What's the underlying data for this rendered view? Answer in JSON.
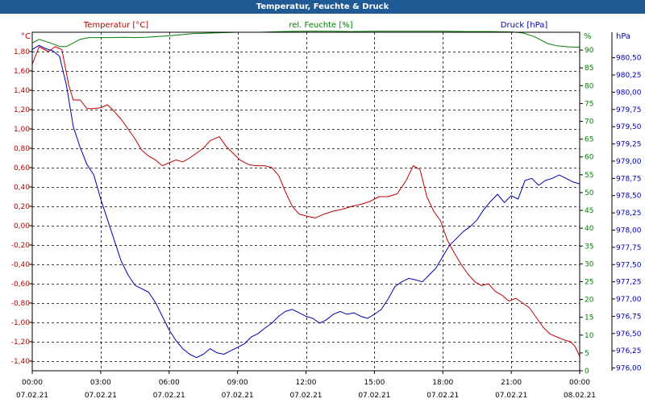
{
  "window": {
    "title": "Temperatur, Feuchte & Druck"
  },
  "chart_data": {
    "type": "line",
    "title": "Temperatur, Feuchte & Druck",
    "grid": true,
    "colors": {
      "temperature": "#c00000",
      "humidity": "#008000",
      "pressure": "#0000b0",
      "grid": "#000000",
      "title_bar": "#1f5a94"
    },
    "x_ticks": [
      {
        "time": "00:00",
        "date": "07.02.21",
        "hours": 0
      },
      {
        "time": "03:00",
        "date": "07.02.21",
        "hours": 3
      },
      {
        "time": "06:00",
        "date": "07.02.21",
        "hours": 6
      },
      {
        "time": "09:00",
        "date": "07.02.21",
        "hours": 9
      },
      {
        "time": "12:00",
        "date": "07.02.21",
        "hours": 12
      },
      {
        "time": "15:00",
        "date": "07.02.21",
        "hours": 15
      },
      {
        "time": "18:00",
        "date": "07.02.21",
        "hours": 18
      },
      {
        "time": "21:00",
        "date": "07.02.21",
        "hours": 21
      },
      {
        "time": "00:00",
        "date": "08.02.21",
        "hours": 24
      }
    ],
    "xlim": [
      0,
      24
    ],
    "axes": {
      "temperature": {
        "label": "Temperatur [°C]",
        "unit": "°C",
        "ylim": [
          -1.5,
          2.0
        ],
        "ticks": [
          "1,80",
          "1,60",
          "1,40",
          "1,20",
          "1,00",
          "0,80",
          "0,60",
          "0,40",
          "0,20",
          "0,00",
          "-0,20",
          "-0,40",
          "-0,60",
          "-0,80",
          "-1,00",
          "-1,20",
          "-1,40"
        ],
        "tick_values": [
          1.8,
          1.6,
          1.4,
          1.2,
          1.0,
          0.8,
          0.6,
          0.4,
          0.2,
          0.0,
          -0.2,
          -0.4,
          -0.6,
          -0.8,
          -1.0,
          -1.2,
          -1.4
        ]
      },
      "humidity": {
        "label": "rel. Feuchte [%]",
        "unit": "%",
        "ylim": [
          0,
          95
        ],
        "ticks": [
          "90",
          "85",
          "80",
          "75",
          "70",
          "65",
          "60",
          "55",
          "50",
          "45",
          "40",
          "35",
          "30",
          "25",
          "20",
          "15",
          "10",
          "5",
          "0"
        ],
        "tick_values": [
          90,
          85,
          80,
          75,
          70,
          65,
          60,
          55,
          50,
          45,
          40,
          35,
          30,
          25,
          20,
          15,
          10,
          5,
          0
        ]
      },
      "pressure": {
        "label": "Druck [hPa]",
        "unit": "hPa",
        "ylim": [
          975.96,
          980.87
        ],
        "ticks": [
          "980,50",
          "980,25",
          "980,00",
          "979,75",
          "979,50",
          "979,25",
          "979,00",
          "978,75",
          "978,50",
          "978,25",
          "978,00",
          "977,75",
          "977,50",
          "977,25",
          "977,00",
          "976,75",
          "976,50",
          "976,25",
          "976,00"
        ],
        "tick_values": [
          980.5,
          980.25,
          980.0,
          979.75,
          979.5,
          979.25,
          979.0,
          978.75,
          978.5,
          978.25,
          978.0,
          977.75,
          977.5,
          977.25,
          977.0,
          976.75,
          976.5,
          976.25,
          976.0
        ]
      }
    },
    "series": [
      {
        "name": "Temperatur [°C]",
        "axis": "temperature",
        "points": [
          [
            0.0,
            1.67
          ],
          [
            0.3,
            1.85
          ],
          [
            0.7,
            1.8
          ],
          [
            1.0,
            1.85
          ],
          [
            1.3,
            1.82
          ],
          [
            1.6,
            1.45
          ],
          [
            1.8,
            1.3
          ],
          [
            2.1,
            1.3
          ],
          [
            2.4,
            1.21
          ],
          [
            2.7,
            1.21
          ],
          [
            3.0,
            1.22
          ],
          [
            3.3,
            1.25
          ],
          [
            3.6,
            1.18
          ],
          [
            3.9,
            1.1
          ],
          [
            4.2,
            1.0
          ],
          [
            4.5,
            0.9
          ],
          [
            4.8,
            0.78
          ],
          [
            5.1,
            0.72
          ],
          [
            5.4,
            0.68
          ],
          [
            5.7,
            0.62
          ],
          [
            6.0,
            0.65
          ],
          [
            6.3,
            0.68
          ],
          [
            6.6,
            0.66
          ],
          [
            6.9,
            0.7
          ],
          [
            7.2,
            0.75
          ],
          [
            7.5,
            0.8
          ],
          [
            7.8,
            0.88
          ],
          [
            8.2,
            0.92
          ],
          [
            8.5,
            0.82
          ],
          [
            8.8,
            0.75
          ],
          [
            9.1,
            0.68
          ],
          [
            9.5,
            0.63
          ],
          [
            9.8,
            0.62
          ],
          [
            10.2,
            0.62
          ],
          [
            10.5,
            0.6
          ],
          [
            10.8,
            0.52
          ],
          [
            11.1,
            0.35
          ],
          [
            11.4,
            0.2
          ],
          [
            11.7,
            0.12
          ],
          [
            12.0,
            0.1
          ],
          [
            12.4,
            0.08
          ],
          [
            12.8,
            0.12
          ],
          [
            13.2,
            0.15
          ],
          [
            13.6,
            0.17
          ],
          [
            14.0,
            0.2
          ],
          [
            14.4,
            0.22
          ],
          [
            14.8,
            0.25
          ],
          [
            15.2,
            0.3
          ],
          [
            15.6,
            0.3
          ],
          [
            16.0,
            0.33
          ],
          [
            16.4,
            0.47
          ],
          [
            16.7,
            0.62
          ],
          [
            17.0,
            0.58
          ],
          [
            17.3,
            0.3
          ],
          [
            17.6,
            0.15
          ],
          [
            17.9,
            0.05
          ],
          [
            18.2,
            -0.15
          ],
          [
            18.5,
            -0.28
          ],
          [
            18.8,
            -0.4
          ],
          [
            19.1,
            -0.5
          ],
          [
            19.4,
            -0.58
          ],
          [
            19.7,
            -0.62
          ],
          [
            20.0,
            -0.6
          ],
          [
            20.3,
            -0.68
          ],
          [
            20.6,
            -0.72
          ],
          [
            20.9,
            -0.78
          ],
          [
            21.2,
            -0.75
          ],
          [
            21.5,
            -0.8
          ],
          [
            21.8,
            -0.85
          ],
          [
            22.1,
            -0.95
          ],
          [
            22.4,
            -1.05
          ],
          [
            22.7,
            -1.12
          ],
          [
            23.0,
            -1.15
          ],
          [
            23.3,
            -1.18
          ],
          [
            23.6,
            -1.2
          ],
          [
            23.8,
            -1.25
          ],
          [
            24.0,
            -1.35
          ]
        ]
      },
      {
        "name": "rel. Feuchte [%]",
        "axis": "humidity",
        "points": [
          [
            0.0,
            92
          ],
          [
            0.3,
            93
          ],
          [
            0.8,
            92
          ],
          [
            1.2,
            91
          ],
          [
            1.5,
            91
          ],
          [
            1.8,
            92
          ],
          [
            2.1,
            93
          ],
          [
            2.5,
            93.5
          ],
          [
            3.0,
            93.5
          ],
          [
            3.5,
            93.5
          ],
          [
            4.0,
            93.6
          ],
          [
            4.5,
            93.5
          ],
          [
            5.0,
            93.6
          ],
          [
            5.5,
            93.8
          ],
          [
            6.0,
            94.0
          ],
          [
            6.5,
            94.3
          ],
          [
            7.0,
            94.6
          ],
          [
            8.0,
            94.8
          ],
          [
            9.0,
            95.0
          ],
          [
            10.0,
            95.0
          ],
          [
            11.0,
            95.2
          ],
          [
            12.0,
            95.3
          ],
          [
            13.0,
            95.3
          ],
          [
            14.0,
            95.2
          ],
          [
            15.0,
            95.3
          ],
          [
            16.0,
            95.3
          ],
          [
            17.0,
            95.3
          ],
          [
            18.0,
            95.3
          ],
          [
            19.0,
            95.2
          ],
          [
            20.0,
            95.2
          ],
          [
            21.0,
            95.1
          ],
          [
            21.5,
            94.8
          ],
          [
            22.0,
            93.8
          ],
          [
            22.3,
            92.8
          ],
          [
            22.6,
            91.8
          ],
          [
            23.0,
            91.2
          ],
          [
            23.5,
            90.9
          ],
          [
            24.0,
            90.8
          ]
        ]
      },
      {
        "name": "Druck [hPa]",
        "axis": "pressure",
        "points": [
          [
            0.0,
            980.62
          ],
          [
            0.3,
            980.68
          ],
          [
            0.6,
            980.63
          ],
          [
            0.9,
            980.6
          ],
          [
            1.2,
            980.52
          ],
          [
            1.5,
            980.1
          ],
          [
            1.8,
            979.5
          ],
          [
            2.1,
            979.2
          ],
          [
            2.4,
            978.95
          ],
          [
            2.7,
            978.8
          ],
          [
            3.0,
            978.45
          ],
          [
            3.3,
            978.15
          ],
          [
            3.6,
            977.85
          ],
          [
            3.9,
            977.55
          ],
          [
            4.2,
            977.35
          ],
          [
            4.5,
            977.2
          ],
          [
            4.8,
            977.15
          ],
          [
            5.1,
            977.1
          ],
          [
            5.4,
            976.95
          ],
          [
            5.7,
            976.75
          ],
          [
            6.0,
            976.55
          ],
          [
            6.3,
            976.4
          ],
          [
            6.6,
            976.28
          ],
          [
            6.9,
            976.2
          ],
          [
            7.2,
            976.15
          ],
          [
            7.5,
            976.2
          ],
          [
            7.8,
            976.28
          ],
          [
            8.1,
            976.22
          ],
          [
            8.4,
            976.2
          ],
          [
            8.7,
            976.25
          ],
          [
            9.0,
            976.3
          ],
          [
            9.3,
            976.35
          ],
          [
            9.6,
            976.45
          ],
          [
            9.9,
            976.5
          ],
          [
            10.2,
            976.58
          ],
          [
            10.5,
            976.65
          ],
          [
            10.8,
            976.75
          ],
          [
            11.1,
            976.82
          ],
          [
            11.4,
            976.85
          ],
          [
            11.7,
            976.8
          ],
          [
            12.0,
            976.75
          ],
          [
            12.3,
            976.72
          ],
          [
            12.6,
            976.65
          ],
          [
            12.9,
            976.7
          ],
          [
            13.2,
            976.78
          ],
          [
            13.5,
            976.82
          ],
          [
            13.8,
            976.78
          ],
          [
            14.1,
            976.8
          ],
          [
            14.4,
            976.75
          ],
          [
            14.7,
            976.72
          ],
          [
            15.0,
            976.78
          ],
          [
            15.3,
            976.85
          ],
          [
            15.6,
            977.0
          ],
          [
            15.9,
            977.18
          ],
          [
            16.2,
            977.25
          ],
          [
            16.5,
            977.3
          ],
          [
            16.8,
            977.28
          ],
          [
            17.1,
            977.25
          ],
          [
            17.4,
            977.35
          ],
          [
            17.7,
            977.45
          ],
          [
            18.0,
            977.62
          ],
          [
            18.3,
            977.78
          ],
          [
            18.6,
            977.88
          ],
          [
            18.9,
            977.98
          ],
          [
            19.2,
            978.05
          ],
          [
            19.5,
            978.15
          ],
          [
            19.8,
            978.3
          ],
          [
            20.1,
            978.42
          ],
          [
            20.4,
            978.52
          ],
          [
            20.7,
            978.4
          ],
          [
            21.0,
            978.5
          ],
          [
            21.3,
            978.45
          ],
          [
            21.6,
            978.72
          ],
          [
            21.9,
            978.75
          ],
          [
            22.2,
            978.65
          ],
          [
            22.5,
            978.72
          ],
          [
            22.8,
            978.75
          ],
          [
            23.1,
            978.8
          ],
          [
            23.4,
            978.75
          ],
          [
            23.7,
            978.7
          ],
          [
            24.0,
            978.67
          ]
        ]
      }
    ]
  }
}
